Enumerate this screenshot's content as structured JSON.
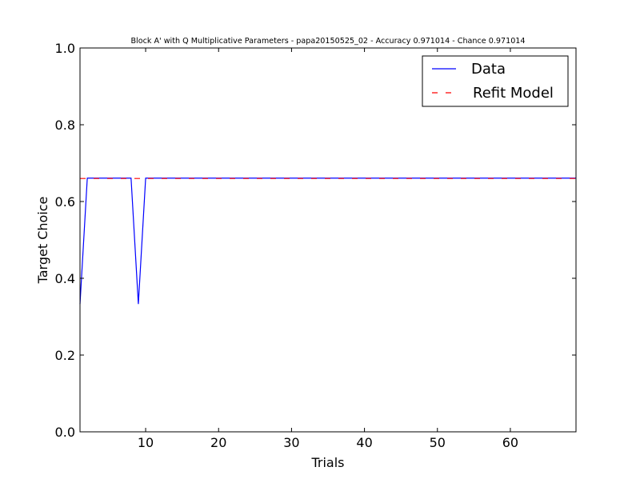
{
  "chart_data": {
    "type": "line",
    "title": "Block A' with Q Multiplicative Parameters - papa20150525_02 - Accuracy 0.971014 - Chance 0.971014",
    "xlabel": "Trials",
    "ylabel": "Target Choice",
    "xlim": [
      1,
      69
    ],
    "ylim": [
      0.0,
      1.0
    ],
    "xticks": [
      10,
      20,
      30,
      40,
      50,
      60
    ],
    "xtick_labels": [
      "10",
      "20",
      "30",
      "40",
      "50",
      "60"
    ],
    "yticks": [
      0.0,
      0.2,
      0.4,
      0.6,
      0.8,
      1.0
    ],
    "ytick_labels": [
      "0.0",
      "0.2",
      "0.4",
      "0.6",
      "0.8",
      "1.0"
    ],
    "grid": false,
    "legend_position": "top-right",
    "series": [
      {
        "name": "Data",
        "color": "#0000ff",
        "style": "solid",
        "x": [
          1,
          2,
          3,
          4,
          5,
          6,
          7,
          8,
          9,
          10,
          11,
          12,
          13,
          14,
          15,
          16,
          17,
          18,
          19,
          20,
          21,
          22,
          23,
          24,
          25,
          26,
          27,
          28,
          29,
          30,
          31,
          32,
          33,
          34,
          35,
          36,
          37,
          38,
          39,
          40,
          41,
          42,
          43,
          44,
          45,
          46,
          47,
          48,
          49,
          50,
          51,
          52,
          53,
          54,
          55,
          56,
          57,
          58,
          59,
          60,
          61,
          62,
          63,
          64,
          65,
          66,
          67,
          68,
          69
        ],
        "y": [
          0.333,
          0.661,
          0.661,
          0.661,
          0.661,
          0.661,
          0.661,
          0.661,
          0.333,
          0.661,
          0.661,
          0.661,
          0.661,
          0.661,
          0.661,
          0.661,
          0.661,
          0.661,
          0.661,
          0.661,
          0.661,
          0.661,
          0.661,
          0.661,
          0.661,
          0.661,
          0.661,
          0.661,
          0.661,
          0.661,
          0.661,
          0.661,
          0.661,
          0.661,
          0.661,
          0.661,
          0.661,
          0.661,
          0.661,
          0.661,
          0.661,
          0.661,
          0.661,
          0.661,
          0.661,
          0.661,
          0.661,
          0.661,
          0.661,
          0.661,
          0.661,
          0.661,
          0.661,
          0.661,
          0.661,
          0.661,
          0.661,
          0.661,
          0.661,
          0.661,
          0.661,
          0.661,
          0.661,
          0.661,
          0.661,
          0.661,
          0.661,
          0.661,
          0.661
        ]
      },
      {
        "name": "Refit Model",
        "color": "#ff0000",
        "style": "dashed",
        "x": [
          1,
          69
        ],
        "y": [
          0.66,
          0.66
        ]
      }
    ]
  }
}
